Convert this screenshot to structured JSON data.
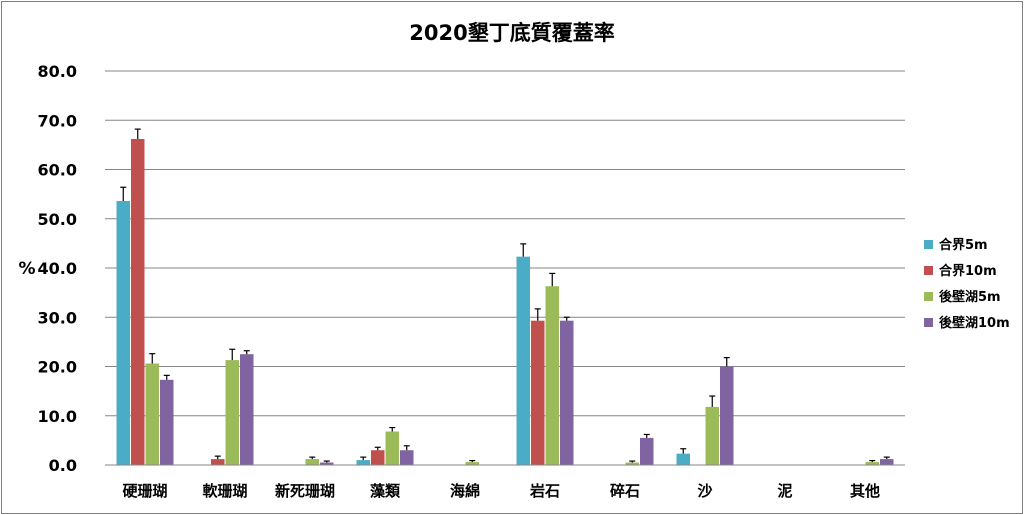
{
  "chart_data": {
    "type": "bar",
    "title": "2020墾丁底質覆蓋率",
    "ylabel": "%",
    "xlabel": "",
    "ylim": [
      0,
      80
    ],
    "yticks": [
      "0.0",
      "10.0",
      "20.0",
      "30.0",
      "40.0",
      "50.0",
      "60.0",
      "70.0",
      "80.0"
    ],
    "grid": true,
    "legend_position": "right",
    "error_bars": true,
    "categories": [
      "硬珊瑚",
      "軟珊瑚",
      "新死珊瑚",
      "藻類",
      "海綿",
      "岩石",
      "碎石",
      "沙",
      "泥",
      "其他"
    ],
    "series": [
      {
        "name": "合界5m",
        "color": "#4bacc6",
        "values": [
          53.6,
          0,
          0,
          1.0,
          0,
          42.3,
          0,
          2.3,
          0,
          0
        ],
        "errors": [
          2.8,
          0,
          0,
          0.6,
          0,
          2.6,
          0,
          1.0,
          0,
          0
        ]
      },
      {
        "name": "合界10m",
        "color": "#c0504d",
        "values": [
          66.2,
          1.2,
          0,
          3.0,
          0,
          29.3,
          0,
          0,
          0,
          0
        ],
        "errors": [
          2.0,
          0.6,
          0,
          0.6,
          0,
          2.4,
          0,
          0,
          0,
          0
        ]
      },
      {
        "name": "後壁湖5m",
        "color": "#9bbb59",
        "values": [
          20.6,
          21.3,
          1.2,
          6.8,
          0.6,
          36.3,
          0.5,
          11.8,
          0,
          0.6
        ],
        "errors": [
          2.0,
          2.2,
          0.4,
          0.8,
          0.3,
          2.6,
          0.3,
          2.2,
          0,
          0.3
        ]
      },
      {
        "name": "後壁湖10m",
        "color": "#8064a2",
        "values": [
          17.3,
          22.5,
          0.5,
          3.0,
          0,
          29.3,
          5.5,
          20.0,
          0,
          1.2
        ],
        "errors": [
          0.9,
          0.7,
          0.3,
          0.9,
          0,
          0.7,
          0.7,
          1.8,
          0,
          0.4
        ]
      }
    ]
  }
}
